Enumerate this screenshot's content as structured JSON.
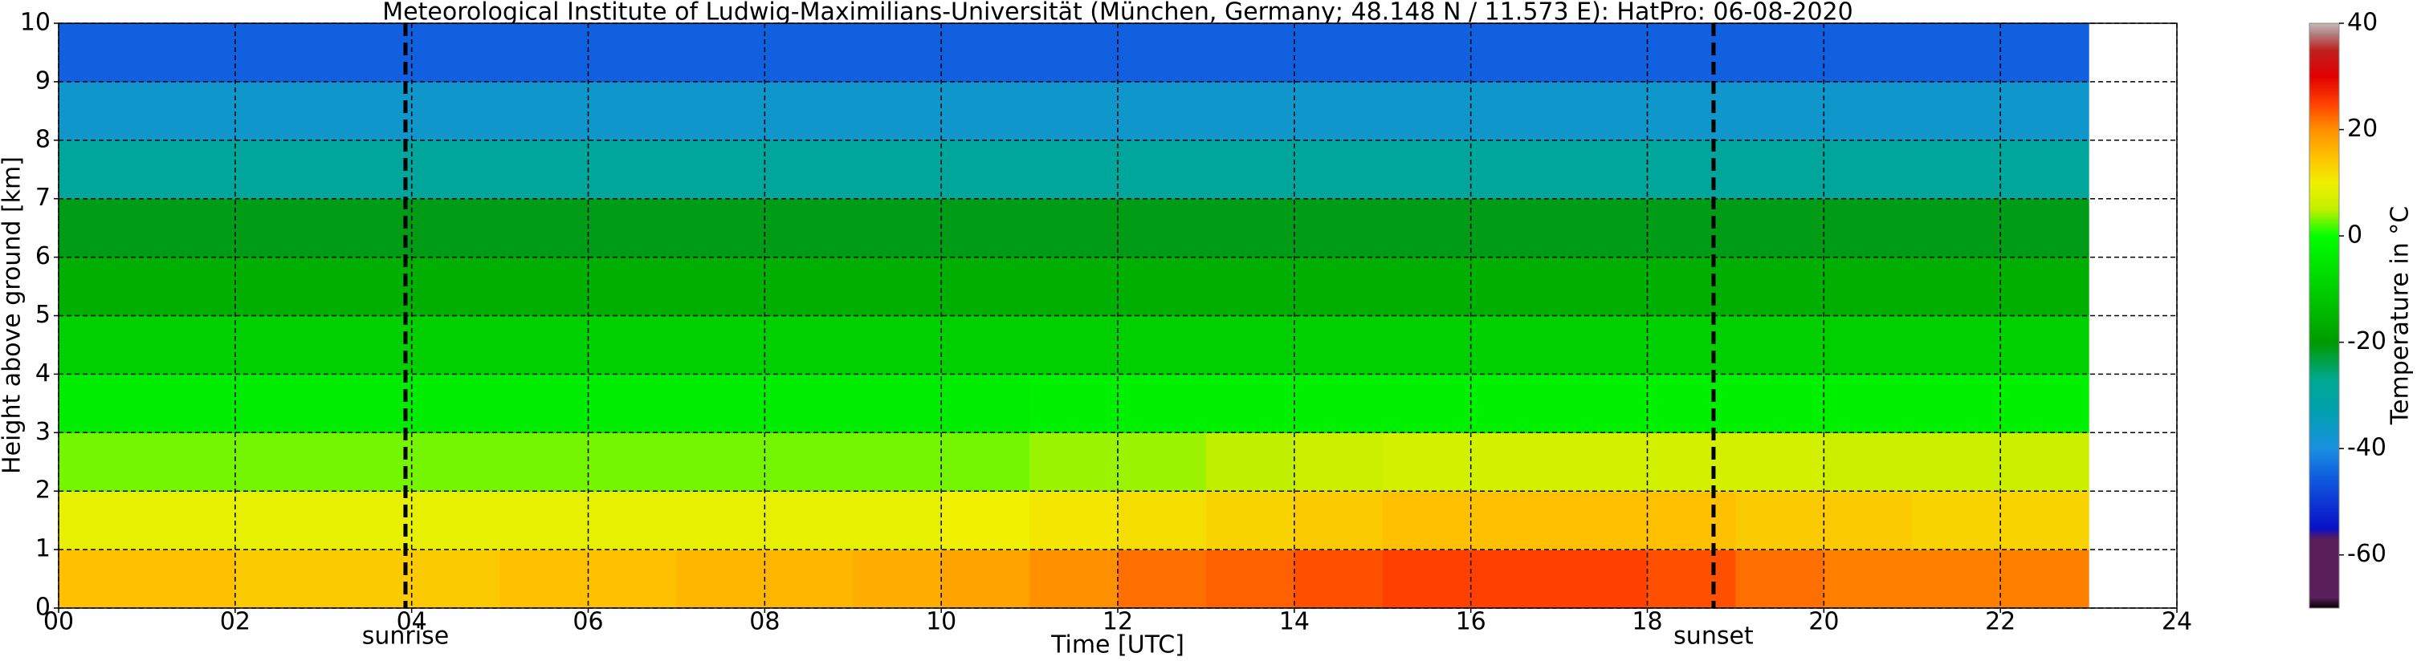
{
  "chart_data": {
    "type": "heatmap",
    "title": "Meteorological Institute of Ludwig-Maximilians-Universität (München, Germany; 48.148 N / 11.573 E):    HatPro: 06-08-2020",
    "xlabel": "Time [UTC]",
    "ylabel": "Height above ground [km]",
    "colorbar_label": "Temperature in °C",
    "xlim": [
      0,
      24
    ],
    "ylim": [
      0,
      10
    ],
    "xticks": [
      {
        "value": 0,
        "label": "00"
      },
      {
        "value": 2,
        "label": "02"
      },
      {
        "value": 4,
        "label": "04"
      },
      {
        "value": 6,
        "label": "06"
      },
      {
        "value": 8,
        "label": "08"
      },
      10,
      12,
      14,
      16,
      18,
      20,
      22,
      24
    ],
    "yticks": [
      0,
      1,
      2,
      3,
      4,
      5,
      6,
      7,
      8,
      9,
      10
    ],
    "grid": true,
    "clim": [
      -70,
      40
    ],
    "cticks": [
      -60,
      -40,
      -20,
      0,
      20,
      40
    ],
    "colorscale": [
      {
        "value": -70,
        "color": "#000000"
      },
      {
        "value": -68,
        "color": "#5a1e5a"
      },
      {
        "value": -57,
        "color": "#5a1e5a"
      },
      {
        "value": -55,
        "color": "#0a10c8"
      },
      {
        "value": -45,
        "color": "#1060e0"
      },
      {
        "value": -40,
        "color": "#1a90e0"
      },
      {
        "value": -33,
        "color": "#00a0b0"
      },
      {
        "value": -27,
        "color": "#00a890"
      },
      {
        "value": -20,
        "color": "#009a00"
      },
      {
        "value": -10,
        "color": "#00d000"
      },
      {
        "value": 0,
        "color": "#00ff00"
      },
      {
        "value": 5,
        "color": "#c0f000"
      },
      {
        "value": 10,
        "color": "#f0f000"
      },
      {
        "value": 15,
        "color": "#ffc000"
      },
      {
        "value": 20,
        "color": "#ff9000"
      },
      {
        "value": 25,
        "color": "#ff4000"
      },
      {
        "value": 30,
        "color": "#e00000"
      },
      {
        "value": 35,
        "color": "#c02020"
      },
      {
        "value": 38,
        "color": "#b08080"
      },
      {
        "value": 40,
        "color": "#c8b8b8"
      }
    ],
    "x_edges": [
      0,
      1,
      2,
      3,
      4,
      5,
      6,
      7,
      8,
      9,
      10,
      11,
      12,
      13,
      14,
      15,
      16,
      17,
      18,
      19,
      20,
      21,
      22,
      23
    ],
    "y_edges": [
      0,
      1,
      2,
      3,
      4,
      5,
      6,
      7,
      8,
      9,
      10
    ],
    "z": [
      [
        15,
        15,
        14,
        14,
        14,
        15,
        15,
        16,
        16,
        17,
        18,
        20,
        22,
        23,
        24,
        25,
        25,
        25,
        24,
        22,
        21,
        21,
        21
      ],
      [
        9,
        9,
        9,
        9,
        9,
        9,
        9,
        9,
        9,
        9,
        10,
        11,
        12,
        13,
        14,
        15,
        15,
        15,
        15,
        14,
        14,
        13,
        13
      ],
      [
        3,
        3,
        3,
        3,
        3,
        3,
        3,
        3,
        3,
        3,
        3,
        4,
        4,
        5,
        6,
        7,
        7,
        7,
        7,
        7,
        6,
        6,
        6
      ],
      [
        -4,
        -4,
        -4,
        -4,
        -4,
        -4,
        -4,
        -4,
        -4,
        -4,
        -4,
        -3,
        -3,
        -3,
        -3,
        -3,
        -3,
        -3,
        -3,
        -3,
        -3,
        -3,
        -3
      ],
      [
        -10,
        -10,
        -10,
        -10,
        -10,
        -10,
        -10,
        -10,
        -10,
        -10,
        -10,
        -10,
        -10,
        -10,
        -10,
        -10,
        -10,
        -10,
        -10,
        -10,
        -10,
        -10,
        -10
      ],
      [
        -16,
        -16,
        -16,
        -16,
        -16,
        -16,
        -16,
        -16,
        -16,
        -16,
        -16,
        -16,
        -16,
        -16,
        -16,
        -16,
        -16,
        -16,
        -16,
        -16,
        -16,
        -16,
        -16
      ],
      [
        -21,
        -21,
        -21,
        -21,
        -21,
        -21,
        -21,
        -21,
        -21,
        -21,
        -21,
        -21,
        -21,
        -21,
        -21,
        -21,
        -21,
        -21,
        -21,
        -21,
        -21,
        -21,
        -21
      ],
      [
        -29,
        -29,
        -29,
        -29,
        -29,
        -29,
        -29,
        -29,
        -29,
        -29,
        -29,
        -29,
        -29,
        -29,
        -29,
        -29,
        -29,
        -29,
        -29,
        -29,
        -29,
        -29,
        -29
      ],
      [
        -37,
        -37,
        -37,
        -37,
        -37,
        -37,
        -37,
        -37,
        -37,
        -37,
        -37,
        -37,
        -37,
        -37,
        -37,
        -37,
        -37,
        -37,
        -37,
        -37,
        -37,
        -37,
        -37
      ],
      [
        -45,
        -45,
        -45,
        -45,
        -45,
        -45,
        -45,
        -45,
        -45,
        -45,
        -45,
        -45,
        -45,
        -45,
        -45,
        -45,
        -45,
        -45,
        -45,
        -45,
        -45,
        -45,
        -45
      ]
    ],
    "vlines": [
      {
        "x": 3.93,
        "label": "sunrise"
      },
      {
        "x": 18.75,
        "label": "sunset"
      }
    ]
  }
}
